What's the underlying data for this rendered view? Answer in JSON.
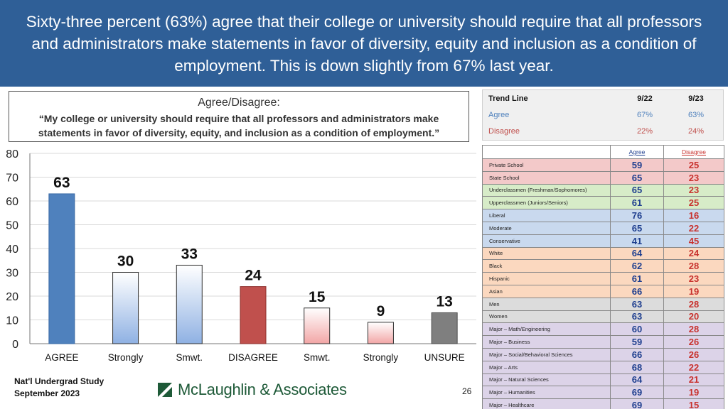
{
  "header": {
    "line1": "Sixty-three percent (63%) agree that their college or university should require that all professors",
    "line2": "and administrators make statements in favor of diversity, equity and inclusion as a condition of",
    "line3": "employment. This is down slightly from 67% last year."
  },
  "question": {
    "title": "Agree/Disagree:",
    "line1": "“My college or university should require that all professors and administrators make",
    "line2": "statements in favor of diversity, equity, and inclusion as a condition of employment.”"
  },
  "trend": {
    "title": "Trend Line",
    "col1": "9/22",
    "col2": "9/23",
    "rows": [
      {
        "label": "Agree",
        "v1": "67%",
        "v2": "63%"
      },
      {
        "label": "Disagree",
        "v1": "22%",
        "v2": "24%"
      }
    ]
  },
  "subgroups": {
    "agree_header": "Agree",
    "disagree_header": "Disagree",
    "rows": [
      {
        "label": "Private School",
        "agree": "59",
        "disagree": "25",
        "bg": "#f3c9c9"
      },
      {
        "label": "State School",
        "agree": "65",
        "disagree": "23",
        "bg": "#f3c9c9"
      },
      {
        "label": "Underclassmen (Freshman/Sophomores)",
        "agree": "65",
        "disagree": "23",
        "bg": "#d7ecc8"
      },
      {
        "label": "Upperclassmen (Juniors/Seniors)",
        "agree": "61",
        "disagree": "25",
        "bg": "#d7ecc8"
      },
      {
        "label": "Liberal",
        "agree": "76",
        "disagree": "16",
        "bg": "#c9d9ee"
      },
      {
        "label": "Moderate",
        "agree": "65",
        "disagree": "22",
        "bg": "#c9d9ee"
      },
      {
        "label": "Conservative",
        "agree": "41",
        "disagree": "45",
        "bg": "#c9d9ee"
      },
      {
        "label": "White",
        "agree": "64",
        "disagree": "24",
        "bg": "#fbd8bf"
      },
      {
        "label": "Black",
        "agree": "62",
        "disagree": "28",
        "bg": "#fbd8bf"
      },
      {
        "label": "Hispanic",
        "agree": "61",
        "disagree": "23",
        "bg": "#fbd8bf"
      },
      {
        "label": "Asian",
        "agree": "66",
        "disagree": "19",
        "bg": "#fbd8bf"
      },
      {
        "label": "Men",
        "agree": "63",
        "disagree": "28",
        "bg": "#dcdcdc"
      },
      {
        "label": "Women",
        "agree": "63",
        "disagree": "20",
        "bg": "#dcdcdc"
      },
      {
        "label": "Major – Math/Engineering",
        "agree": "60",
        "disagree": "28",
        "bg": "#dcd3e8"
      },
      {
        "label": "Major – Business",
        "agree": "59",
        "disagree": "26",
        "bg": "#dcd3e8"
      },
      {
        "label": "Major – Social/Behavioral Sciences",
        "agree": "66",
        "disagree": "26",
        "bg": "#dcd3e8"
      },
      {
        "label": "Major – Arts",
        "agree": "68",
        "disagree": "22",
        "bg": "#dcd3e8"
      },
      {
        "label": "Major – Natural Sciences",
        "agree": "64",
        "disagree": "21",
        "bg": "#dcd3e8"
      },
      {
        "label": "Major – Humanities",
        "agree": "69",
        "disagree": "19",
        "bg": "#dcd3e8"
      },
      {
        "label": "Major – Healthcare",
        "agree": "69",
        "disagree": "15",
        "bg": "#dcd3e8"
      }
    ]
  },
  "chart_data": {
    "type": "bar",
    "categories": [
      "AGREE",
      "Strongly",
      "Smwt.",
      "DISAGREE",
      "Smwt.",
      "Strongly",
      "UNSURE"
    ],
    "values": [
      63,
      30,
      33,
      24,
      15,
      9,
      13
    ],
    "ylim": [
      0,
      80
    ],
    "yticks": [
      0,
      10,
      20,
      30,
      40,
      50,
      60,
      70,
      80
    ],
    "grid": true,
    "legend": "none",
    "bar_fills": [
      "agree",
      "agree-light",
      "agree-light",
      "disagree",
      "disagree-light",
      "disagree-light",
      "unsure"
    ],
    "colors": {
      "agree": "#4f81bd",
      "agree_light_top": "#ffffff",
      "agree_light_bottom": "#8fb1e3",
      "disagree": "#c0504d",
      "disagree_light_top": "#ffffff",
      "disagree_light_bottom": "#f2a6a6",
      "unsure": "#7f7f7f"
    }
  },
  "footer": {
    "study_line1": "Nat'l Undergrad Study",
    "study_line2": "September 2023",
    "logo": "McLaughlin & Associates",
    "page": "26"
  }
}
